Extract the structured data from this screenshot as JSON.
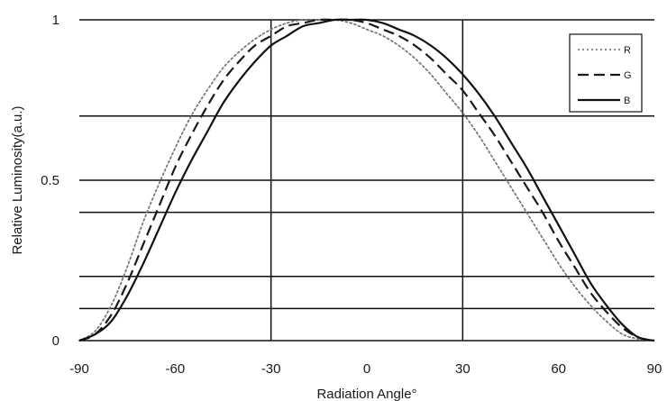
{
  "chart_data": {
    "type": "line",
    "title": "",
    "xlabel": "Radiation Angle°",
    "ylabel": "Relative Luminosity(a.u.)",
    "xlim": [
      -90,
      90
    ],
    "ylim": [
      0,
      1
    ],
    "x_ticks": [
      -90,
      -60,
      -30,
      0,
      30,
      60,
      90
    ],
    "x_tick_labels": [
      "-90",
      "-60",
      "-30",
      "0",
      "30",
      "60",
      "90"
    ],
    "y_ticks": [
      0,
      0.5,
      1
    ],
    "y_tick_labels": [
      "0",
      "0.5",
      "1"
    ],
    "grid_vertical": [
      -30,
      30
    ],
    "grid_horizontal": [
      0.1,
      0.2,
      0.4,
      0.5,
      0.7,
      1
    ],
    "legend_position": "top-right",
    "x": [
      -90,
      -85,
      -80,
      -75,
      -70,
      -65,
      -60,
      -55,
      -50,
      -45,
      -40,
      -35,
      -30,
      -25,
      -20,
      -15,
      -10,
      -5,
      0,
      5,
      10,
      15,
      20,
      25,
      30,
      35,
      40,
      45,
      50,
      55,
      60,
      65,
      70,
      75,
      80,
      85,
      90
    ],
    "series": [
      {
        "name": "R",
        "style": "dotted",
        "color": "#7a7a7a",
        "values": [
          0.0,
          0.03,
          0.11,
          0.23,
          0.37,
          0.49,
          0.6,
          0.7,
          0.78,
          0.85,
          0.9,
          0.94,
          0.97,
          0.99,
          1.0,
          1.0,
          1.0,
          0.99,
          0.97,
          0.95,
          0.92,
          0.88,
          0.83,
          0.77,
          0.71,
          0.64,
          0.56,
          0.48,
          0.4,
          0.32,
          0.24,
          0.17,
          0.11,
          0.06,
          0.02,
          0.005,
          0.0
        ]
      },
      {
        "name": "G",
        "style": "dashed",
        "color": "#1a1a1a",
        "values": [
          0.0,
          0.02,
          0.08,
          0.18,
          0.3,
          0.42,
          0.54,
          0.64,
          0.73,
          0.81,
          0.87,
          0.92,
          0.95,
          0.98,
          0.99,
          1.0,
          1.0,
          1.0,
          0.99,
          0.97,
          0.95,
          0.92,
          0.88,
          0.83,
          0.78,
          0.71,
          0.64,
          0.56,
          0.48,
          0.4,
          0.31,
          0.23,
          0.15,
          0.09,
          0.04,
          0.01,
          0.0
        ]
      },
      {
        "name": "B",
        "style": "solid",
        "color": "#111111",
        "values": [
          0.0,
          0.02,
          0.06,
          0.14,
          0.24,
          0.35,
          0.46,
          0.56,
          0.65,
          0.74,
          0.81,
          0.87,
          0.92,
          0.95,
          0.98,
          0.99,
          1.0,
          1.0,
          1.0,
          0.99,
          0.97,
          0.95,
          0.92,
          0.88,
          0.83,
          0.77,
          0.7,
          0.62,
          0.54,
          0.45,
          0.36,
          0.27,
          0.18,
          0.11,
          0.05,
          0.01,
          0.0
        ]
      }
    ]
  }
}
